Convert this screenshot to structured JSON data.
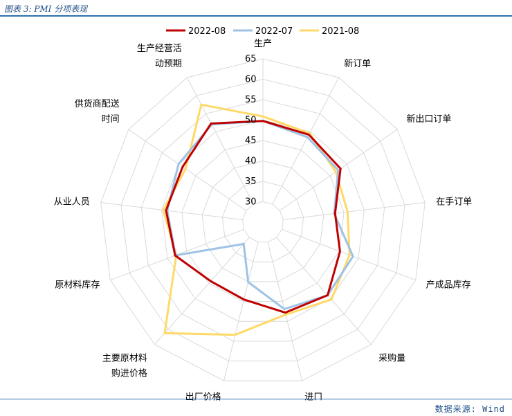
{
  "header": {
    "title": "图表 3: PMI 分项表现"
  },
  "source": "数据来源: Wind",
  "chart_data": {
    "type": "radar",
    "categories": [
      "生产",
      "新订单",
      "新出口订单",
      "在手订单",
      "产成品库存",
      "采购量",
      "进口",
      "出厂价格",
      "主要原材料购进价格",
      "原材料库存",
      "从业人员",
      "供货商配送时间",
      "生产经营活动预期"
    ],
    "category_lines": [
      [
        "生产"
      ],
      [
        "新订单"
      ],
      [
        "新出口订单"
      ],
      [
        "在手订单"
      ],
      [
        "产成品库存"
      ],
      [
        "采购量"
      ],
      [
        "进口"
      ],
      [
        "出厂价格"
      ],
      [
        "主要原材料",
        "购进价格"
      ],
      [
        "原材料库存"
      ],
      [
        "从业人员"
      ],
      [
        "供货商配送",
        "时间"
      ],
      [
        "生产经营活",
        "动预期"
      ]
    ],
    "ticks": [
      30,
      35,
      40,
      45,
      50,
      55,
      60,
      65
    ],
    "tick_labels": [
      "30",
      "35",
      "40",
      "45",
      "50",
      "55",
      "60",
      "65"
    ],
    "range": [
      25,
      65
    ],
    "grid": true,
    "legend_position": "top",
    "series": [
      {
        "name": "2022-08",
        "color": "#c00000",
        "values": [
          49.8,
          49.2,
          48.1,
          42.8,
          45.2,
          48.9,
          47.8,
          44.5,
          44.3,
          48.0,
          48.9,
          48.9,
          52.3
        ]
      },
      {
        "name": "2022-07",
        "color": "#9dc3e6",
        "values": [
          49.8,
          48.5,
          47.4,
          42.6,
          48.6,
          48.9,
          46.9,
          40.1,
          32.1,
          47.9,
          48.6,
          50.1,
          52.0
        ]
      },
      {
        "name": "2021-08",
        "color": "#ffd966",
        "values": [
          50.9,
          49.6,
          46.7,
          45.9,
          47.7,
          50.3,
          48.3,
          53.4,
          61.3,
          47.7,
          49.6,
          48.0,
          57.5
        ]
      }
    ]
  }
}
